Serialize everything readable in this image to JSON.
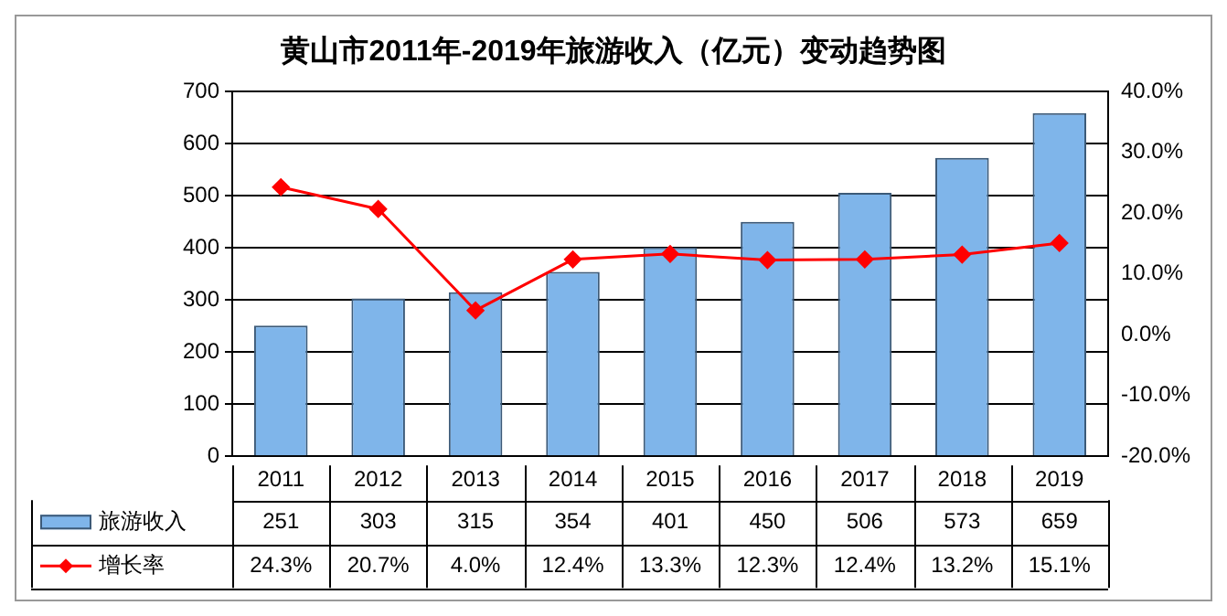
{
  "chart_data": {
    "type": "bar",
    "title": "黄山市2011年-2019年旅游收入（亿元）变动趋势图",
    "categories": [
      "2011",
      "2012",
      "2013",
      "2014",
      "2015",
      "2016",
      "2017",
      "2018",
      "2019"
    ],
    "series": [
      {
        "name": "旅游收入",
        "color": "#7fb5ea",
        "values": [
          251,
          303,
          315,
          354,
          401,
          450,
          506,
          573,
          659
        ]
      },
      {
        "name": "增长率",
        "type": "line",
        "axis": "y2",
        "color": "#ff0000",
        "marker": "diamond",
        "values": [
          24.3,
          20.7,
          4.0,
          12.4,
          13.3,
          12.3,
          12.4,
          13.2,
          15.1
        ],
        "value_labels": [
          "24.3%",
          "20.7%",
          "4.0%",
          "12.4%",
          "13.3%",
          "12.3%",
          "12.4%",
          "13.2%",
          "15.1%"
        ]
      }
    ],
    "ylim": [
      0,
      700
    ],
    "yticks": [
      0,
      100,
      200,
      300,
      400,
      500,
      600,
      700
    ],
    "y2lim": [
      -20,
      40
    ],
    "y2ticks": [
      {
        "value": -20,
        "label": "-20.0%"
      },
      {
        "value": -10,
        "label": "-10.0%"
      },
      {
        "value": 0,
        "label": "0.0%"
      },
      {
        "value": 10,
        "label": "10.0%"
      },
      {
        "value": 20,
        "label": "20.0%"
      },
      {
        "value": 30,
        "label": "30.0%"
      },
      {
        "value": 40,
        "label": "40.0%"
      }
    ],
    "grid": "y",
    "legend": "bottom",
    "data_labels": true
  }
}
